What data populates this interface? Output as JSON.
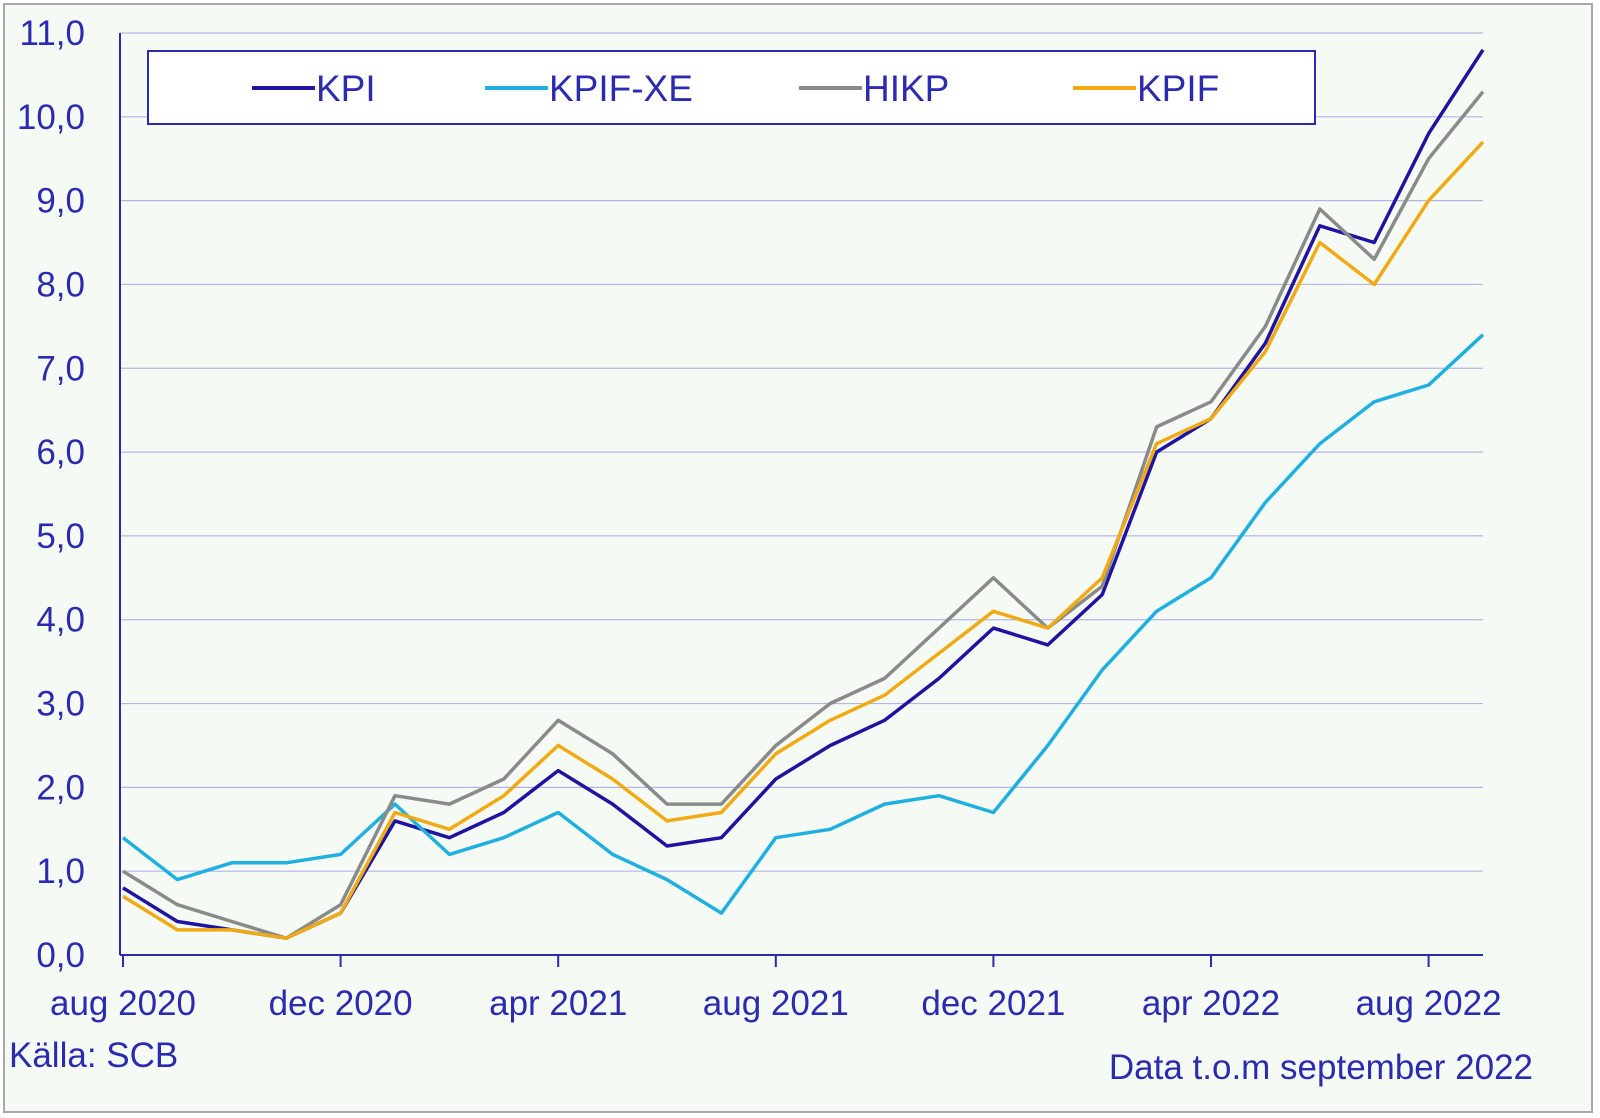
{
  "chart_data": {
    "type": "line",
    "x": [
      "aug 2020",
      "sep 2020",
      "okt 2020",
      "nov 2020",
      "dec 2020",
      "jan 2021",
      "feb 2021",
      "mar 2021",
      "apr 2021",
      "maj 2021",
      "jun 2021",
      "jul 2021",
      "aug 2021",
      "sep 2021",
      "okt 2021",
      "nov 2021",
      "dec 2021",
      "jan 2022",
      "feb 2022",
      "mar 2022",
      "apr 2022",
      "maj 2022",
      "jun 2022",
      "jul 2022",
      "aug 2022",
      "sep 2022"
    ],
    "xtick_labels": [
      "aug 2020",
      "dec 2020",
      "apr 2021",
      "aug 2021",
      "dec 2021",
      "apr 2022",
      "aug 2022"
    ],
    "ytick_labels": [
      "0,0",
      "1,0",
      "2,0",
      "3,0",
      "4,0",
      "5,0",
      "6,0",
      "7,0",
      "8,0",
      "9,0",
      "10,0",
      "11,0"
    ],
    "ylim": [
      0,
      11
    ],
    "grid": true,
    "legend_position": "top",
    "series": [
      {
        "name": "KPI",
        "color": "#1e14a0",
        "values": [
          0.8,
          0.4,
          0.3,
          0.2,
          0.5,
          1.6,
          1.4,
          1.7,
          2.2,
          1.8,
          1.3,
          1.4,
          2.1,
          2.5,
          2.8,
          3.3,
          3.9,
          3.7,
          4.3,
          6.0,
          6.4,
          7.3,
          8.7,
          8.5,
          9.8,
          10.8
        ]
      },
      {
        "name": "KPIF-XE",
        "color": "#1fb0e0",
        "values": [
          1.4,
          0.9,
          1.1,
          1.1,
          1.2,
          1.8,
          1.2,
          1.4,
          1.7,
          1.2,
          0.9,
          0.5,
          1.4,
          1.5,
          1.8,
          1.9,
          1.7,
          2.5,
          3.4,
          4.1,
          4.5,
          5.4,
          6.1,
          6.6,
          6.8,
          7.4
        ]
      },
      {
        "name": "HIKP",
        "color": "#8a8a8a",
        "values": [
          1.0,
          0.6,
          0.4,
          0.2,
          0.6,
          1.9,
          1.8,
          2.1,
          2.8,
          2.4,
          1.8,
          1.8,
          2.5,
          3.0,
          3.3,
          3.9,
          4.5,
          3.9,
          4.4,
          6.3,
          6.6,
          7.5,
          8.9,
          8.3,
          9.5,
          10.3
        ]
      },
      {
        "name": "KPIF",
        "color": "#f0aa14",
        "values": [
          0.7,
          0.3,
          0.3,
          0.2,
          0.5,
          1.7,
          1.5,
          1.9,
          2.5,
          2.1,
          1.6,
          1.7,
          2.4,
          2.8,
          3.1,
          3.6,
          4.1,
          3.9,
          4.5,
          6.1,
          6.4,
          7.2,
          8.5,
          8.0,
          9.0,
          9.7
        ]
      }
    ]
  },
  "footer": {
    "source": "Källa: SCB",
    "data_note": "Data t.o.m september 2022"
  }
}
